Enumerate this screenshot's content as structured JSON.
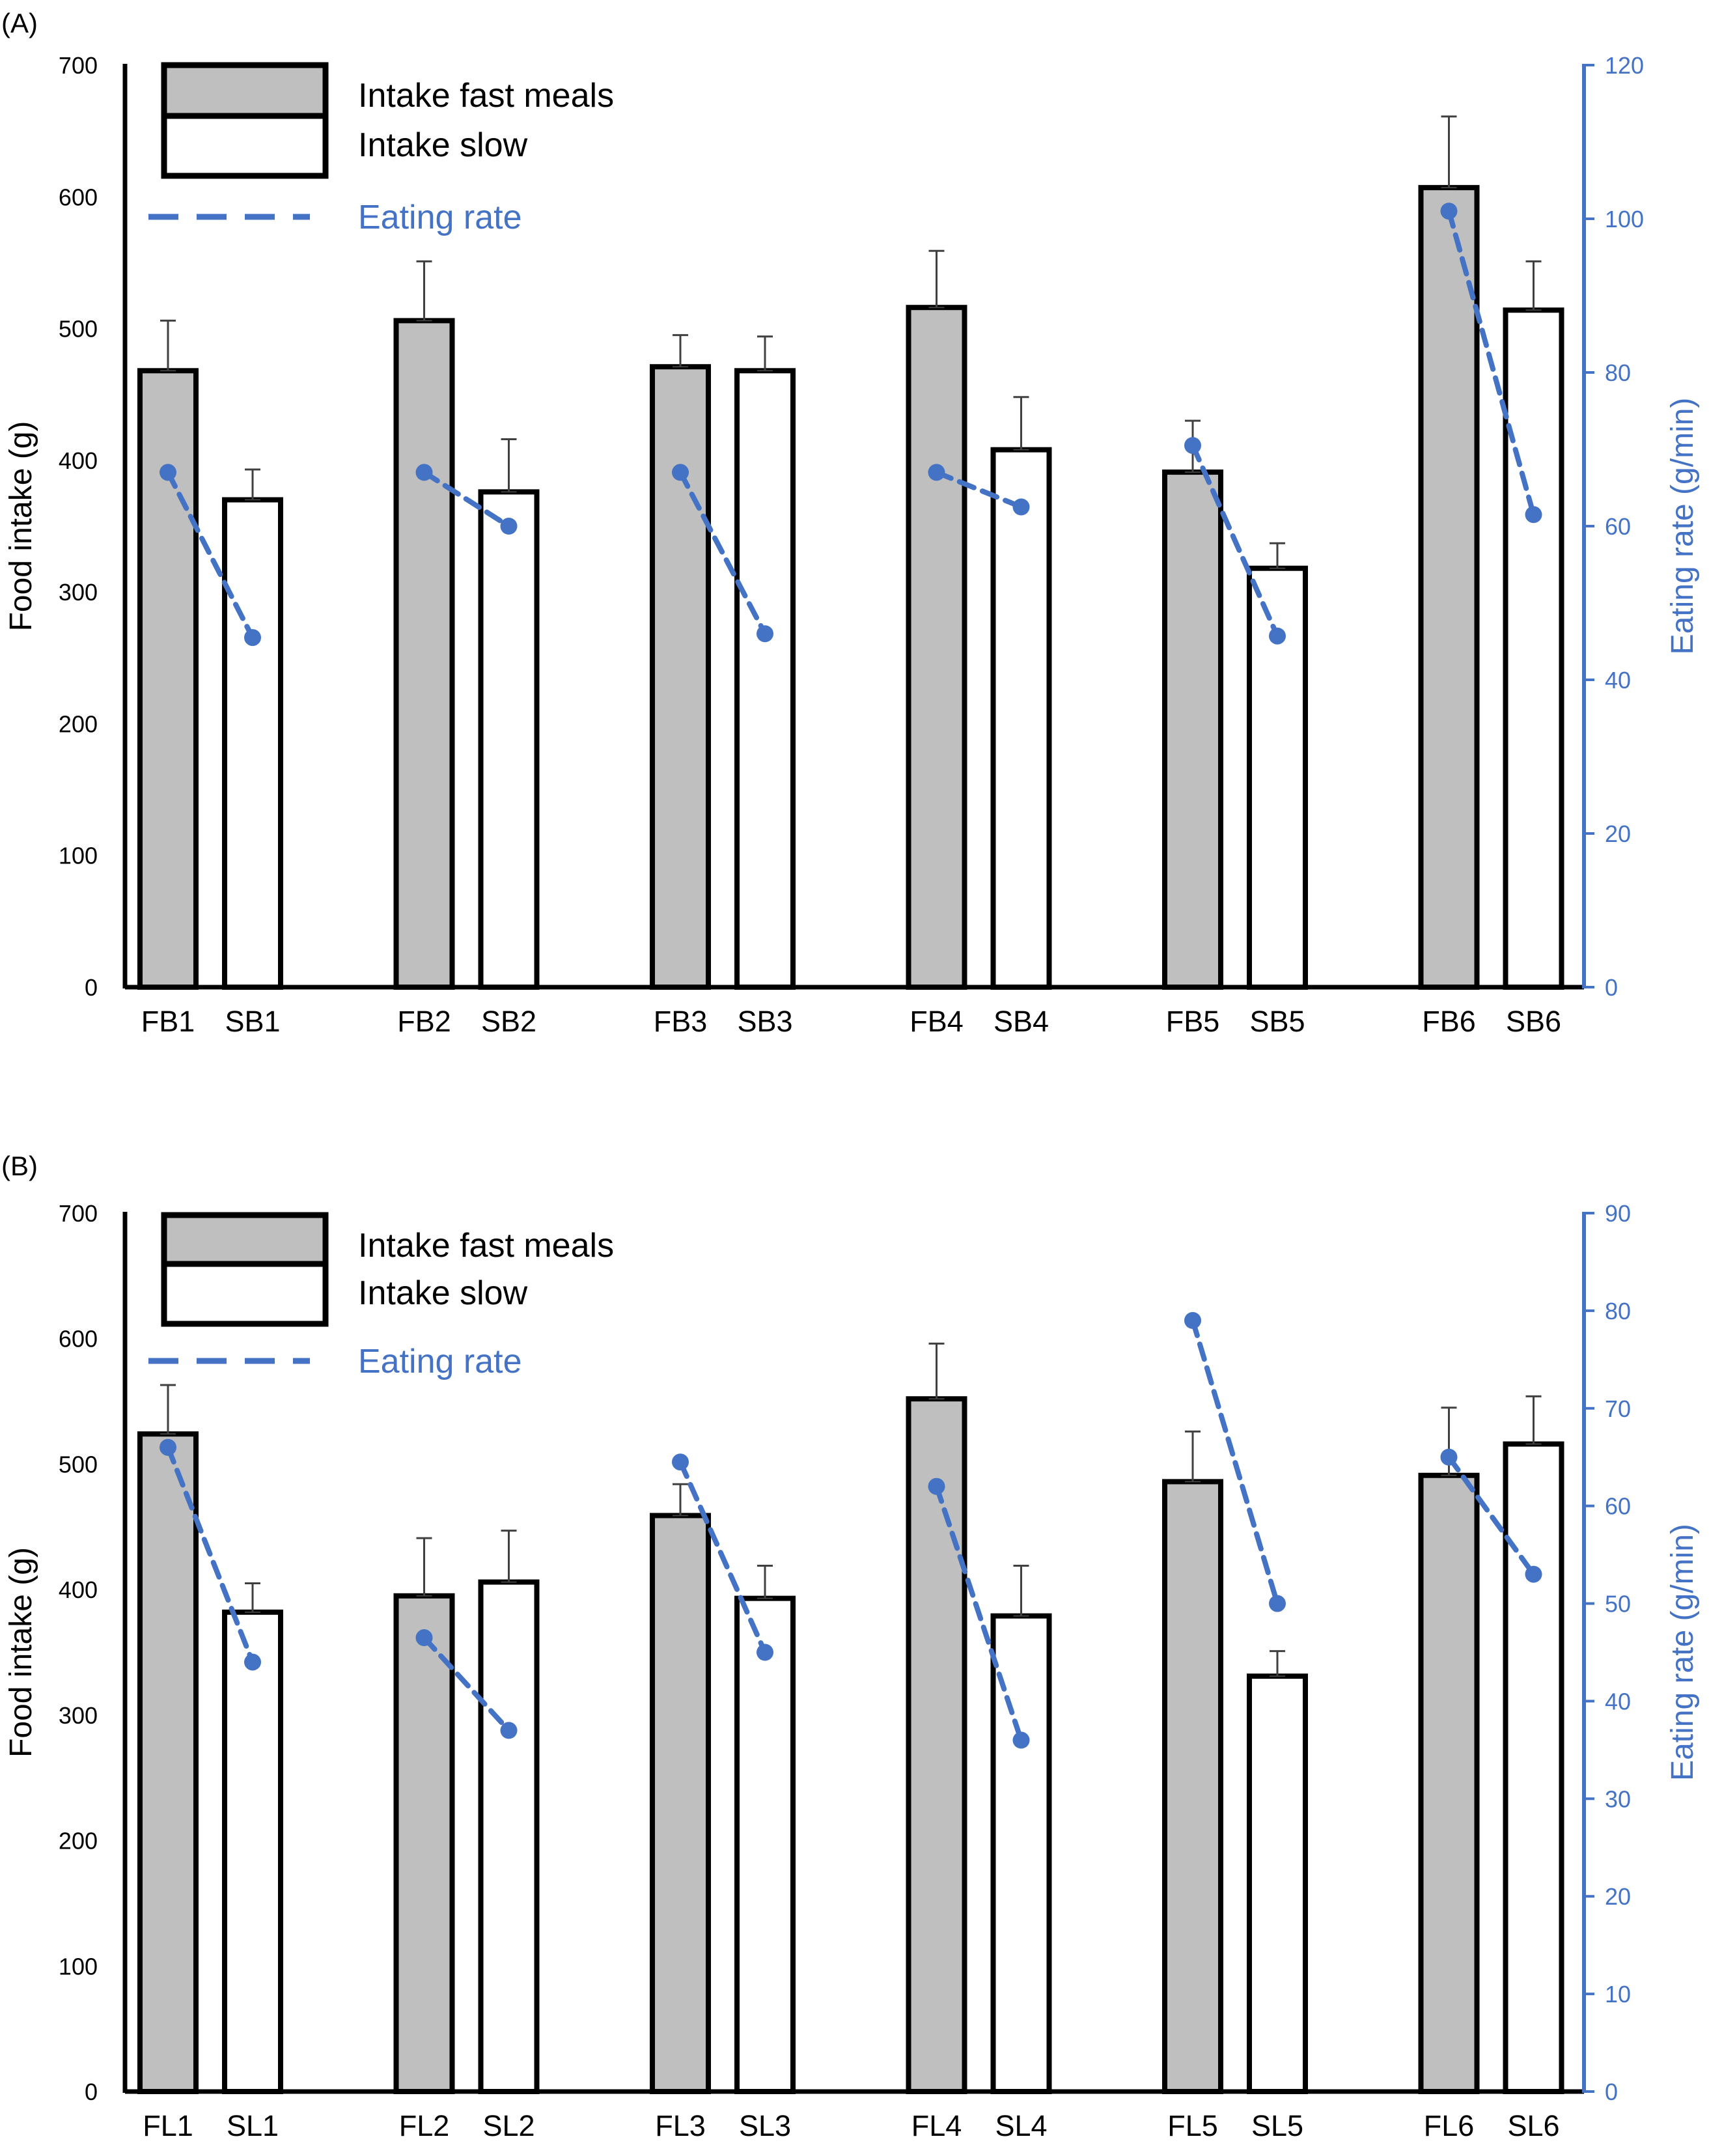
{
  "chart_data": [
    {
      "type": "bar",
      "panel_label": "(A)",
      "title": "",
      "categories": [
        "FB1",
        "SB1",
        "FB2",
        "SB2",
        "FB3",
        "SB3",
        "FB4",
        "SB4",
        "FB5",
        "SB5",
        "FB6",
        "SB6"
      ],
      "ylabel": "Food intake (g)",
      "y2label": "Eating rate (g/min)",
      "ylim": [
        0,
        700
      ],
      "y2lim": [
        0,
        120
      ],
      "yticks": [
        0,
        100,
        200,
        300,
        400,
        500,
        600,
        700
      ],
      "y2ticks": [
        0,
        20,
        40,
        60,
        80,
        100,
        120
      ],
      "legend": {
        "fast": "Intake fast meals",
        "slow": "Intake slow",
        "rate": "Eating rate",
        "placement": "top-left"
      },
      "groups": [
        {
          "fast": {
            "label": "FB1",
            "intake": 468,
            "error": 38,
            "rate": 67
          },
          "slow": {
            "label": "SB1",
            "intake": 370,
            "error": 23,
            "rate": 45.5
          }
        },
        {
          "fast": {
            "label": "FB2",
            "intake": 506,
            "error": 45,
            "rate": 67
          },
          "slow": {
            "label": "SB2",
            "intake": 376,
            "error": 40,
            "rate": 60
          }
        },
        {
          "fast": {
            "label": "FB3",
            "intake": 471,
            "error": 24,
            "rate": 67
          },
          "slow": {
            "label": "SB3",
            "intake": 468,
            "error": 26,
            "rate": 46
          }
        },
        {
          "fast": {
            "label": "FB4",
            "intake": 516,
            "error": 43,
            "rate": 67
          },
          "slow": {
            "label": "SB4",
            "intake": 408,
            "error": 40,
            "rate": 62.5
          }
        },
        {
          "fast": {
            "label": "FB5",
            "intake": 391,
            "error": 39,
            "rate": 70.5
          },
          "slow": {
            "label": "SB5",
            "intake": 318,
            "error": 19,
            "rate": 45.7
          }
        },
        {
          "fast": {
            "label": "FB6",
            "intake": 607,
            "error": 54,
            "rate": 101
          },
          "slow": {
            "label": "SB6",
            "intake": 514,
            "error": 37,
            "rate": 61.5
          }
        }
      ]
    },
    {
      "type": "bar",
      "panel_label": "(B)",
      "title": "",
      "categories": [
        "FL1",
        "SL1",
        "FL2",
        "SL2",
        "FL3",
        "SL3",
        "FL4",
        "SL4",
        "FL5",
        "SL5",
        "FL6",
        "SL6"
      ],
      "ylabel": "Food intake (g)",
      "y2label": "Eating rate (g/min)",
      "ylim": [
        0,
        700
      ],
      "y2lim": [
        0,
        90
      ],
      "yticks": [
        0,
        100,
        200,
        300,
        400,
        500,
        600,
        700
      ],
      "y2ticks": [
        0,
        10,
        20,
        30,
        40,
        50,
        60,
        70,
        80,
        90
      ],
      "legend": {
        "fast": "Intake fast meals",
        "slow": "Intake slow",
        "rate": "Eating rate",
        "placement": "top-left"
      },
      "groups": [
        {
          "fast": {
            "label": "FL1",
            "intake": 524,
            "error": 39,
            "rate": 66
          },
          "slow": {
            "label": "SL1",
            "intake": 382,
            "error": 23,
            "rate": 44
          }
        },
        {
          "fast": {
            "label": "FL2",
            "intake": 395,
            "error": 46,
            "rate": 46.5
          },
          "slow": {
            "label": "SL2",
            "intake": 406,
            "error": 41,
            "rate": 37
          }
        },
        {
          "fast": {
            "label": "FL3",
            "intake": 459,
            "error": 25,
            "rate": 64.5
          },
          "slow": {
            "label": "SL3",
            "intake": 393,
            "error": 26,
            "rate": 45
          }
        },
        {
          "fast": {
            "label": "FL4",
            "intake": 552,
            "error": 44,
            "rate": 62
          },
          "slow": {
            "label": "SL4",
            "intake": 379,
            "error": 40,
            "rate": 36
          }
        },
        {
          "fast": {
            "label": "FL5",
            "intake": 486,
            "error": 40,
            "rate": 79
          },
          "slow": {
            "label": "SL5",
            "intake": 331,
            "error": 20,
            "rate": 50
          }
        },
        {
          "fast": {
            "label": "FL6",
            "intake": 491,
            "error": 54,
            "rate": 65
          },
          "slow": {
            "label": "SL6",
            "intake": 516,
            "error": 38,
            "rate": 53
          }
        }
      ]
    }
  ],
  "colors": {
    "fast_fill": "#BFBFBF",
    "slow_fill": "#FFFFFF",
    "bar_stroke": "#000000",
    "rate_color": "#4472C4",
    "error_bar": "#404040"
  }
}
